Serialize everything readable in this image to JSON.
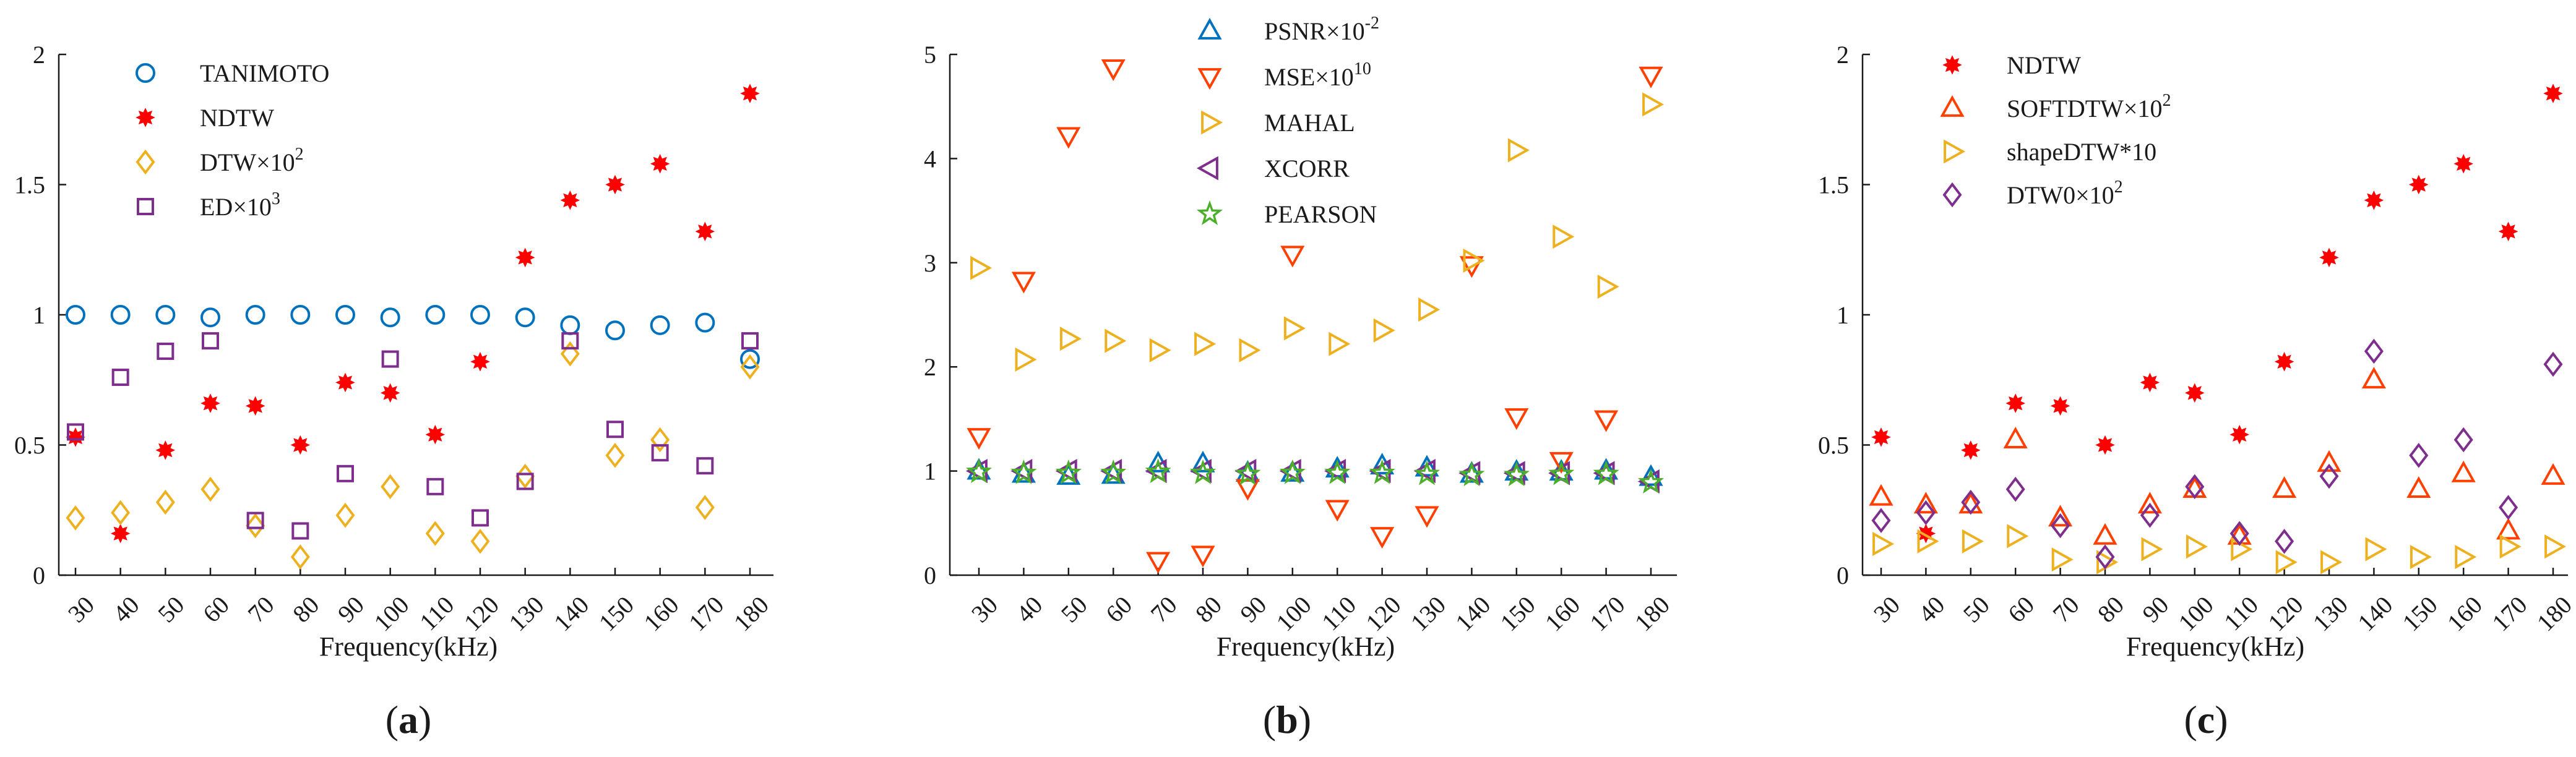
{
  "chart_data": [
    {
      "type": "scatter",
      "panel_label": "(a)",
      "panel_letter": "a",
      "xlabel": "Frequency(kHz)",
      "ylabel": "",
      "ylim": [
        0,
        2
      ],
      "yticks": [
        0,
        0.5,
        1,
        1.5,
        2
      ],
      "ytick_labels": [
        "0",
        "0.5",
        "1",
        "1.5",
        "2"
      ],
      "x": [
        30,
        40,
        50,
        60,
        70,
        80,
        90,
        100,
        110,
        120,
        130,
        140,
        150,
        160,
        170,
        180
      ],
      "x_labels": [
        "30",
        "40",
        "50",
        "60",
        "70",
        "80",
        "90",
        "100",
        "110",
        "120",
        "130",
        "140",
        "150",
        "160",
        "170",
        "180"
      ],
      "legend_position": "top-left",
      "series": [
        {
          "name": "TANIMOTO",
          "base": "TANIMOTO",
          "sup": "",
          "marker": "circle",
          "color": "#0072bd",
          "values": [
            1.0,
            1.0,
            1.0,
            0.99,
            1.0,
            1.0,
            1.0,
            0.99,
            1.0,
            1.0,
            0.99,
            0.96,
            0.94,
            0.96,
            0.97,
            0.83
          ]
        },
        {
          "name": "NDTW",
          "base": "NDTW",
          "sup": "",
          "marker": "star",
          "color": "#ff0000",
          "values": [
            0.53,
            0.16,
            0.48,
            0.66,
            0.65,
            0.5,
            0.74,
            0.7,
            0.54,
            0.82,
            1.22,
            1.44,
            1.5,
            1.58,
            1.32,
            1.85
          ]
        },
        {
          "name": "DTW×10^2",
          "base": "DTW×10",
          "sup": "2",
          "marker": "diamond",
          "color": "#edb120",
          "values": [
            0.22,
            0.24,
            0.28,
            0.33,
            0.19,
            0.07,
            0.23,
            0.34,
            0.16,
            0.13,
            0.38,
            0.85,
            0.46,
            0.52,
            0.26,
            0.8
          ]
        },
        {
          "name": "ED×10^3",
          "base": "ED×10",
          "sup": "3",
          "marker": "square",
          "color": "#7e2f8e",
          "values": [
            0.55,
            0.76,
            0.86,
            0.9,
            0.21,
            0.17,
            0.39,
            0.83,
            0.34,
            0.22,
            0.36,
            0.9,
            0.56,
            0.47,
            0.42,
            0.9
          ]
        }
      ]
    },
    {
      "type": "scatter",
      "panel_label": "(b)",
      "panel_letter": "b",
      "xlabel": "Frequency(kHz)",
      "ylabel": "",
      "ylim": [
        0,
        5
      ],
      "yticks": [
        0,
        1,
        2,
        3,
        4,
        5
      ],
      "ytick_labels": [
        "0",
        "1",
        "2",
        "3",
        "4",
        "5"
      ],
      "x": [
        30,
        40,
        50,
        60,
        70,
        80,
        90,
        100,
        110,
        120,
        130,
        140,
        150,
        160,
        170,
        180
      ],
      "x_labels": [
        "30",
        "40",
        "50",
        "60",
        "70",
        "80",
        "90",
        "100",
        "110",
        "120",
        "130",
        "140",
        "150",
        "160",
        "170",
        "180"
      ],
      "legend_position": "top-center",
      "series": [
        {
          "name": "PSNR×10^-2",
          "base": "PSNR×10",
          "sup": "-2",
          "marker": "triangle-up",
          "color": "#0072bd",
          "values": [
            1.0,
            0.97,
            0.95,
            0.96,
            1.07,
            1.07,
            0.98,
            0.98,
            1.02,
            1.05,
            1.03,
            0.97,
            0.99,
            0.99,
            1.0,
            0.94
          ]
        },
        {
          "name": "MSE×10^10",
          "base": "MSE×10",
          "sup": "10",
          "marker": "triangle-down",
          "color": "#ff4000",
          "values": [
            1.33,
            2.83,
            4.22,
            4.87,
            0.14,
            0.2,
            0.84,
            3.08,
            0.64,
            0.38,
            0.58,
            2.98,
            1.52,
            1.1,
            1.5,
            4.8
          ]
        },
        {
          "name": "MAHAL",
          "base": "MAHAL",
          "sup": "",
          "marker": "triangle-right",
          "color": "#edb120",
          "values": [
            2.95,
            2.07,
            2.27,
            2.25,
            2.16,
            2.22,
            2.16,
            2.37,
            2.22,
            2.35,
            2.55,
            3.02,
            4.08,
            3.25,
            2.77,
            4.52
          ]
        },
        {
          "name": "XCORR",
          "base": "XCORR",
          "sup": "",
          "marker": "triangle-left",
          "color": "#7e2f8e",
          "values": [
            1.0,
            1.0,
            1.0,
            1.0,
            1.0,
            1.0,
            1.0,
            1.0,
            1.0,
            1.0,
            1.0,
            0.98,
            0.98,
            0.98,
            0.98,
            0.9
          ]
        },
        {
          "name": "PEARSON",
          "base": "PEARSON",
          "sup": "",
          "marker": "star5",
          "color": "#4caf2a",
          "values": [
            0.99,
            0.98,
            0.98,
            0.98,
            0.99,
            0.98,
            0.97,
            0.98,
            0.98,
            0.98,
            0.97,
            0.96,
            0.96,
            0.97,
            0.97,
            0.89
          ]
        }
      ]
    },
    {
      "type": "scatter",
      "panel_label": "(c)",
      "panel_letter": "c",
      "xlabel": "Frequency(kHz)",
      "ylabel": "",
      "ylim": [
        0,
        2
      ],
      "yticks": [
        0,
        0.5,
        1,
        1.5,
        2
      ],
      "ytick_labels": [
        "0",
        "0.5",
        "1",
        "1.5",
        "2"
      ],
      "x": [
        30,
        40,
        50,
        60,
        70,
        80,
        90,
        100,
        110,
        120,
        130,
        140,
        150,
        160,
        170,
        180
      ],
      "x_labels": [
        "30",
        "40",
        "50",
        "60",
        "70",
        "80",
        "90",
        "100",
        "110",
        "120",
        "130",
        "140",
        "150",
        "160",
        "170",
        "180"
      ],
      "legend_position": "top-left",
      "series": [
        {
          "name": "NDTW",
          "base": "NDTW",
          "sup": "",
          "marker": "star",
          "color": "#ff0000",
          "values": [
            0.53,
            0.16,
            0.48,
            0.66,
            0.65,
            0.5,
            0.74,
            0.7,
            0.54,
            0.82,
            1.22,
            1.44,
            1.5,
            1.58,
            1.32,
            1.85
          ]
        },
        {
          "name": "SOFTDTW×10^2",
          "base": "SOFTDTW×10",
          "sup": "2",
          "marker": "triangle-up",
          "color": "#ff4000",
          "values": [
            0.3,
            0.27,
            0.27,
            0.52,
            0.22,
            0.15,
            0.27,
            0.33,
            0.15,
            0.33,
            0.43,
            0.75,
            0.33,
            0.39,
            0.17,
            0.38
          ]
        },
        {
          "name": "shapeDTW*10",
          "base": "shapeDTW*10",
          "sup": "",
          "marker": "triangle-right",
          "color": "#edb120",
          "values": [
            0.12,
            0.13,
            0.13,
            0.15,
            0.06,
            0.05,
            0.1,
            0.11,
            0.1,
            0.05,
            0.05,
            0.1,
            0.07,
            0.07,
            0.11,
            0.11
          ]
        },
        {
          "name": "DTW0×10^2",
          "base": "DTW0×10",
          "sup": "2",
          "marker": "diamond",
          "color": "#7e2f8e",
          "values": [
            0.21,
            0.24,
            0.28,
            0.33,
            0.19,
            0.07,
            0.23,
            0.34,
            0.16,
            0.13,
            0.38,
            0.86,
            0.46,
            0.52,
            0.26,
            0.81
          ]
        }
      ]
    }
  ]
}
